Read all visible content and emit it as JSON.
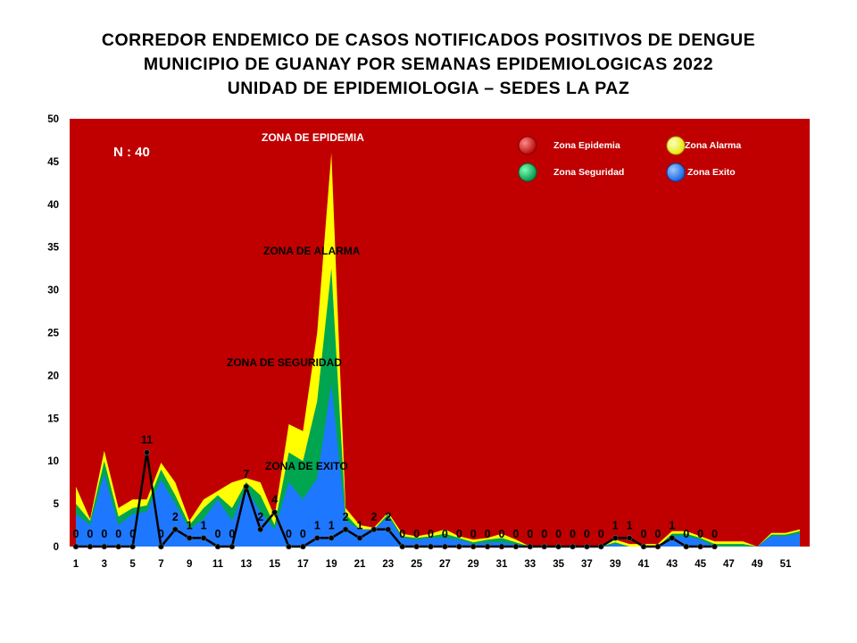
{
  "title_lines": [
    "CORREDOR ENDEMICO DE CASOS NOTIFICADOS POSITIVOS DE DENGUE",
    "MUNICIPIO DE GUANAY POR SEMANAS EPIDEMIOLOGICAS 2022",
    "UNIDAD DE EPIDEMIOLOGIA – SEDES LA PAZ"
  ],
  "n_label": "N : 40",
  "zone_labels": {
    "epidemia": "ZONA DE EPIDEMIA",
    "alarma": "ZONA DE ALARMA",
    "seguridad": "ZONA DE  SEGURIDAD",
    "exito": "ZONA DE  EXITO"
  },
  "legend": [
    {
      "label": "Zona Epidemia",
      "color": "#c00000"
    },
    {
      "label": "Zona Alarma",
      "color": "#ffff00"
    },
    {
      "label": "Zona Seguridad",
      "color": "#00a550"
    },
    {
      "label": "Zona Exito",
      "color": "#1e78ff"
    }
  ],
  "colors": {
    "epidemia": "#c00000",
    "alarma": "#ffff00",
    "seguridad": "#00a550",
    "exito": "#1e78ff",
    "cases_line": "#000000"
  },
  "chart_data": {
    "type": "area",
    "x": [
      1,
      2,
      3,
      4,
      5,
      6,
      7,
      8,
      9,
      10,
      11,
      12,
      13,
      14,
      15,
      16,
      17,
      18,
      19,
      20,
      21,
      22,
      23,
      24,
      25,
      26,
      27,
      28,
      29,
      30,
      31,
      32,
      33,
      34,
      35,
      36,
      37,
      38,
      39,
      40,
      41,
      42,
      43,
      44,
      45,
      46,
      47,
      48,
      49,
      50,
      51,
      52
    ],
    "x_tick_labels": [
      "1",
      "3",
      "5",
      "7",
      "9",
      "11",
      "13",
      "15",
      "17",
      "19",
      "21",
      "23",
      "25",
      "27",
      "29",
      "31",
      "33",
      "35",
      "37",
      "39",
      "41",
      "43",
      "45",
      "47",
      "49",
      "51"
    ],
    "ylim": [
      0,
      50
    ],
    "y_ticks": [
      0,
      5,
      10,
      15,
      20,
      25,
      30,
      35,
      40,
      45,
      50
    ],
    "series": [
      {
        "name": "Zona Exito",
        "values": [
          3.8,
          2.5,
          8.5,
          2.5,
          3.8,
          4.1,
          7.8,
          5.0,
          2.0,
          3.2,
          5.5,
          3.0,
          7.0,
          4.0,
          2.0,
          7.5,
          5.5,
          8.0,
          19.0,
          3.0,
          2.0,
          2.0,
          3.5,
          1.0,
          0.8,
          1.0,
          1.0,
          0.8,
          0.3,
          0.5,
          0.5,
          0.3,
          0,
          0,
          0,
          0,
          0,
          0,
          0.3,
          0,
          0,
          0,
          1.2,
          1.2,
          0.8,
          0,
          0,
          0,
          0,
          1.2,
          1.2,
          1.5
        ]
      },
      {
        "name": "Zona Seguridad",
        "values": [
          5.0,
          3.0,
          10.0,
          3.5,
          4.5,
          4.8,
          9.0,
          6.0,
          2.5,
          4.5,
          6.0,
          4.5,
          7.5,
          6.0,
          2.5,
          11.0,
          10.0,
          17.0,
          32.5,
          3.8,
          2.0,
          2.0,
          3.8,
          1.2,
          1.0,
          1.2,
          1.5,
          1.0,
          0.5,
          0.8,
          1.0,
          0.5,
          0,
          0,
          0,
          0,
          0,
          0,
          0.5,
          0,
          0,
          0,
          1.5,
          1.5,
          1.0,
          0.3,
          0.3,
          0.3,
          0,
          1.4,
          1.4,
          1.8
        ]
      },
      {
        "name": "Zona Alarma",
        "values": [
          7.0,
          3.2,
          11.2,
          4.5,
          5.5,
          5.5,
          9.8,
          7.5,
          3.0,
          5.5,
          6.5,
          7.5,
          8.0,
          7.5,
          3.5,
          14.3,
          13.5,
          25.0,
          46.0,
          4.5,
          2.5,
          2.2,
          4.0,
          1.5,
          1.2,
          1.5,
          2.0,
          1.2,
          0.8,
          1.0,
          1.5,
          0.8,
          0,
          0,
          0,
          0,
          0,
          0,
          0.8,
          0.3,
          0.3,
          0.3,
          1.8,
          1.8,
          1.2,
          0.6,
          0.6,
          0.6,
          0,
          1.6,
          1.6,
          2.0
        ]
      },
      {
        "name": "Zona Epidemia",
        "values": [
          50,
          50,
          50,
          50,
          50,
          50,
          50,
          50,
          50,
          50,
          50,
          50,
          50,
          50,
          50,
          50,
          50,
          50,
          50,
          50,
          50,
          50,
          50,
          50,
          50,
          50,
          50,
          50,
          50,
          50,
          50,
          50,
          50,
          50,
          50,
          50,
          50,
          50,
          50,
          50,
          50,
          50,
          50,
          50,
          50,
          50,
          50,
          50,
          50,
          50,
          50,
          50
        ]
      },
      {
        "name": "2022",
        "x": [
          1,
          2,
          3,
          4,
          5,
          6,
          7,
          8,
          9,
          10,
          11,
          12,
          13,
          14,
          15,
          16,
          17,
          18,
          19,
          20,
          21,
          22,
          23,
          24,
          25,
          26,
          27,
          28,
          29,
          30,
          31,
          32,
          33,
          34,
          35,
          36,
          37,
          38,
          39,
          40,
          41,
          42,
          43,
          44,
          45,
          46
        ],
        "values": [
          0,
          0,
          0,
          0,
          0,
          11,
          0,
          2,
          1,
          1,
          0,
          0,
          7,
          2,
          4,
          0,
          0,
          1,
          1,
          2,
          1,
          2,
          2,
          0,
          0,
          0,
          0,
          0,
          0,
          0,
          0,
          0,
          0,
          0,
          0,
          0,
          0,
          0,
          1,
          1,
          0,
          0,
          1,
          0,
          0,
          0
        ]
      }
    ]
  }
}
